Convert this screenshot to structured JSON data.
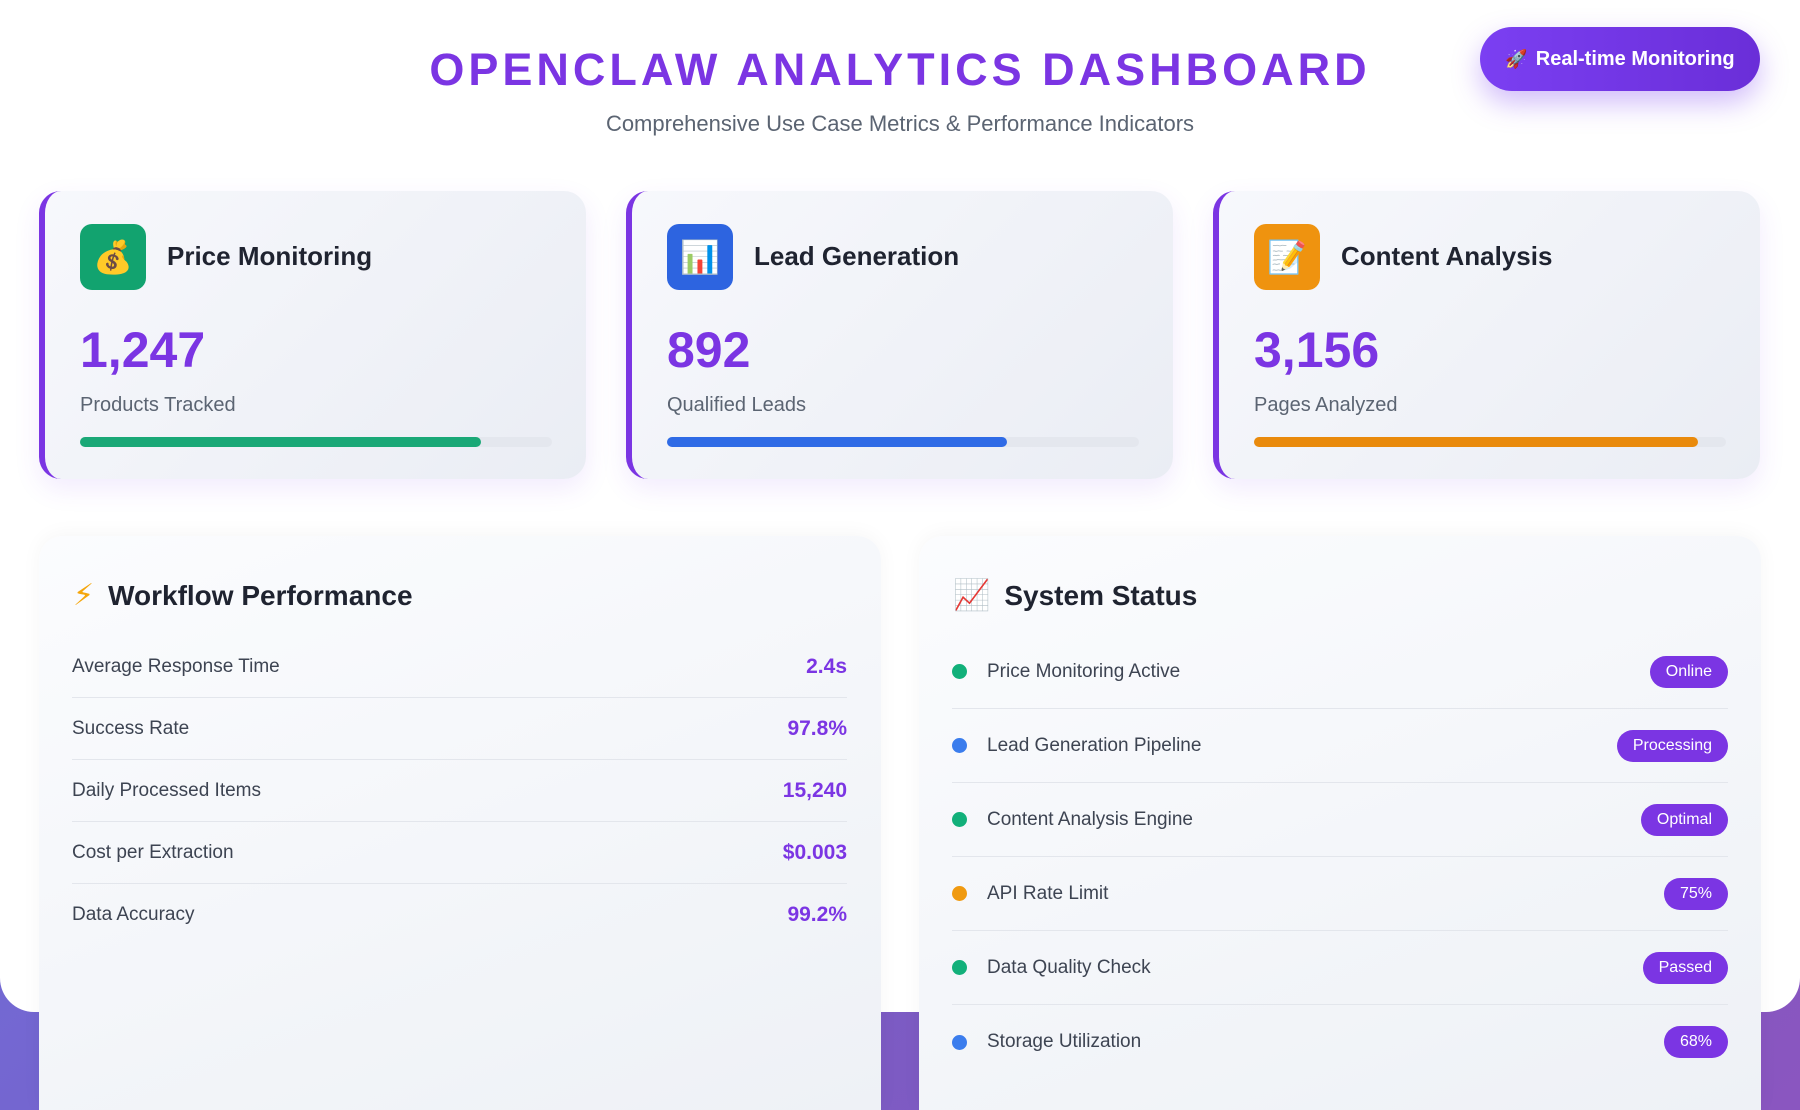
{
  "header": {
    "title": "OPENCLAW ANALYTICS DASHBOARD",
    "subtitle": "Comprehensive Use Case Metrics & Performance Indicators",
    "monitor_button": {
      "icon": "rocket-icon",
      "label": "Real-time Monitoring"
    }
  },
  "metrics": [
    {
      "icon": "money-bag-icon",
      "title": "Price Monitoring",
      "value": "1,247",
      "label": "Products Tracked",
      "progress": 0.85,
      "color": "#1aa877",
      "icon_bg": "#12a36f"
    },
    {
      "icon": "bar-chart-icon",
      "title": "Lead Generation",
      "value": "892",
      "label": "Qualified Leads",
      "progress": 0.72,
      "color": "#2f6be6",
      "icon_bg": "#2d64e0"
    },
    {
      "icon": "memo-icon",
      "title": "Content Analysis",
      "value": "3,156",
      "label": "Pages Analyzed",
      "progress": 0.94,
      "color": "#e98a0c",
      "icon_bg": "#ef930f"
    }
  ],
  "workflow": {
    "icon": "lightning-icon",
    "title": "Workflow Performance",
    "rows": [
      {
        "label": "Average Response Time",
        "value": "2.4s"
      },
      {
        "label": "Success Rate",
        "value": "97.8%"
      },
      {
        "label": "Daily Processed Items",
        "value": "15,240"
      },
      {
        "label": "Cost per Extraction",
        "value": "$0.003"
      },
      {
        "label": "Data Accuracy",
        "value": "99.2%"
      }
    ]
  },
  "system_status": {
    "icon": "trend-chart-icon",
    "title": "System Status",
    "rows": [
      {
        "label": "Price Monitoring Active",
        "badge": "Online",
        "dot_color": "#12b07a"
      },
      {
        "label": "Lead Generation Pipeline",
        "badge": "Processing",
        "dot_color": "#3b7ded"
      },
      {
        "label": "Content Analysis Engine",
        "badge": "Optimal",
        "dot_color": "#12b07a"
      },
      {
        "label": "API Rate Limit",
        "badge": "75%",
        "dot_color": "#f09a10"
      },
      {
        "label": "Data Quality Check",
        "badge": "Passed",
        "dot_color": "#12b07a"
      },
      {
        "label": "Storage Utilization",
        "badge": "68%",
        "dot_color": "#3b7ded"
      }
    ]
  }
}
